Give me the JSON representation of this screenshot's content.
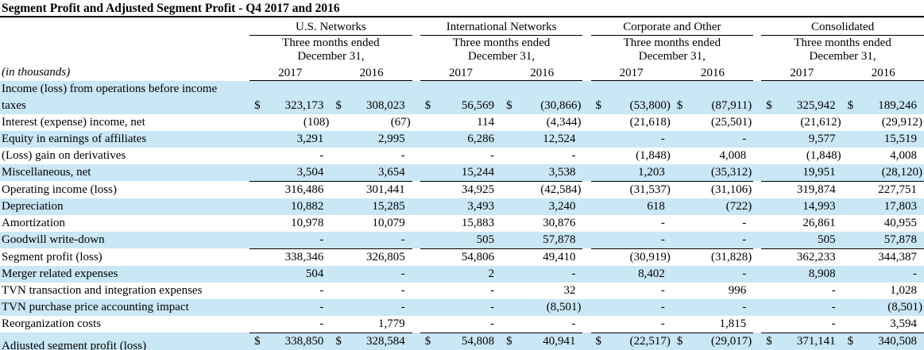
{
  "title": "Segment Profit and Adjusted Segment Profit - Q4 2017 and 2016",
  "table": {
    "units_label": "(in thousands)",
    "currency_symbol": "$",
    "groups": [
      {
        "label": "U.S. Networks",
        "period_line1": "Three months ended",
        "period_line2": "December 31,",
        "years": [
          "2017",
          "2016"
        ]
      },
      {
        "label": "International Networks",
        "period_line1": "Three months ended",
        "period_line2": "December 31,",
        "years": [
          "2017",
          "2016"
        ]
      },
      {
        "label": "Corporate and Other",
        "period_line1": "Three months ended",
        "period_line2": "December 31,",
        "years": [
          "2017",
          "2016"
        ]
      },
      {
        "label": "Consolidated",
        "period_line1": "Three months ended",
        "period_line2": "December 31,",
        "years": [
          "2017",
          "2016"
        ]
      }
    ],
    "rows": [
      {
        "label": "Income (loss) from operations before income taxes",
        "dollar": true,
        "shade": true,
        "rule_below": false,
        "double_rule_below": false,
        "values": [
          "323,173",
          "308,023",
          "56,569",
          "(30,866)",
          "(53,800)",
          "(87,911)",
          "325,942",
          "189,246"
        ]
      },
      {
        "label": "Interest (expense) income, net",
        "dollar": false,
        "shade": false,
        "rule_below": false,
        "double_rule_below": false,
        "values": [
          "(108)",
          "(67)",
          "114",
          "(4,344)",
          "(21,618)",
          "(25,501)",
          "(21,612)",
          "(29,912)"
        ]
      },
      {
        "label": "Equity in earnings of affiliates",
        "dollar": false,
        "shade": true,
        "rule_below": false,
        "double_rule_below": false,
        "values": [
          "3,291",
          "2,995",
          "6,286",
          "12,524",
          "-",
          "-",
          "9,577",
          "15,519"
        ]
      },
      {
        "label": "(Loss) gain on derivatives",
        "dollar": false,
        "shade": false,
        "rule_below": false,
        "double_rule_below": false,
        "values": [
          "-",
          "-",
          "-",
          "-",
          "(1,848)",
          "4,008",
          "(1,848)",
          "4,008"
        ]
      },
      {
        "label": "Miscellaneous, net",
        "dollar": false,
        "shade": true,
        "rule_below": true,
        "double_rule_below": false,
        "values": [
          "3,504",
          "3,654",
          "15,244",
          "3,538",
          "1,203",
          "(35,312)",
          "19,951",
          "(28,120)"
        ]
      },
      {
        "label": "Operating income (loss)",
        "dollar": false,
        "shade": false,
        "rule_below": false,
        "double_rule_below": false,
        "values": [
          "316,486",
          "301,441",
          "34,925",
          "(42,584)",
          "(31,537)",
          "(31,106)",
          "319,874",
          "227,751"
        ]
      },
      {
        "label": "Depreciation",
        "dollar": false,
        "shade": true,
        "rule_below": false,
        "double_rule_below": false,
        "values": [
          "10,882",
          "15,285",
          "3,493",
          "3,240",
          "618",
          "(722)",
          "14,993",
          "17,803"
        ]
      },
      {
        "label": "Amortization",
        "dollar": false,
        "shade": false,
        "rule_below": false,
        "double_rule_below": false,
        "values": [
          "10,978",
          "10,079",
          "15,883",
          "30,876",
          "-",
          "-",
          "26,861",
          "40,955"
        ]
      },
      {
        "label": "Goodwill write-down",
        "dollar": false,
        "shade": true,
        "rule_below": true,
        "double_rule_below": false,
        "values": [
          "-",
          "-",
          "505",
          "57,878",
          "-",
          "-",
          "505",
          "57,878"
        ]
      },
      {
        "label": "Segment profit (loss)",
        "dollar": false,
        "shade": false,
        "rule_below": false,
        "double_rule_below": false,
        "values": [
          "338,346",
          "326,805",
          "54,806",
          "49,410",
          "(30,919)",
          "(31,828)",
          "362,233",
          "344,387"
        ]
      },
      {
        "label": "Merger related expenses",
        "dollar": false,
        "shade": true,
        "rule_below": false,
        "double_rule_below": false,
        "values": [
          "504",
          "-",
          "2",
          "-",
          "8,402",
          "-",
          "8,908",
          "-"
        ]
      },
      {
        "label": "TVN transaction and integration expenses",
        "dollar": false,
        "shade": false,
        "rule_below": false,
        "double_rule_below": false,
        "values": [
          "-",
          "-",
          "-",
          "32",
          "-",
          "996",
          "-",
          "1,028"
        ]
      },
      {
        "label": "TVN purchase price accounting impact",
        "dollar": false,
        "shade": true,
        "rule_below": false,
        "double_rule_below": false,
        "values": [
          "-",
          "-",
          "-",
          "(8,501)",
          "-",
          "-",
          "-",
          "(8,501)"
        ]
      },
      {
        "label": "Reorganization costs",
        "dollar": false,
        "shade": false,
        "rule_below": true,
        "double_rule_below": false,
        "values": [
          "-",
          "1,779",
          "-",
          "-",
          "-",
          "1,815",
          "-",
          "3,594"
        ]
      },
      {
        "label": "Adjusted segment profit (loss)",
        "dollar": true,
        "shade": true,
        "rule_below": false,
        "double_rule_below": true,
        "values": [
          "338,850",
          "328,584",
          "54,808",
          "40,941",
          "(22,517)",
          "(29,017)",
          "371,141",
          "340,508"
        ]
      }
    ]
  }
}
